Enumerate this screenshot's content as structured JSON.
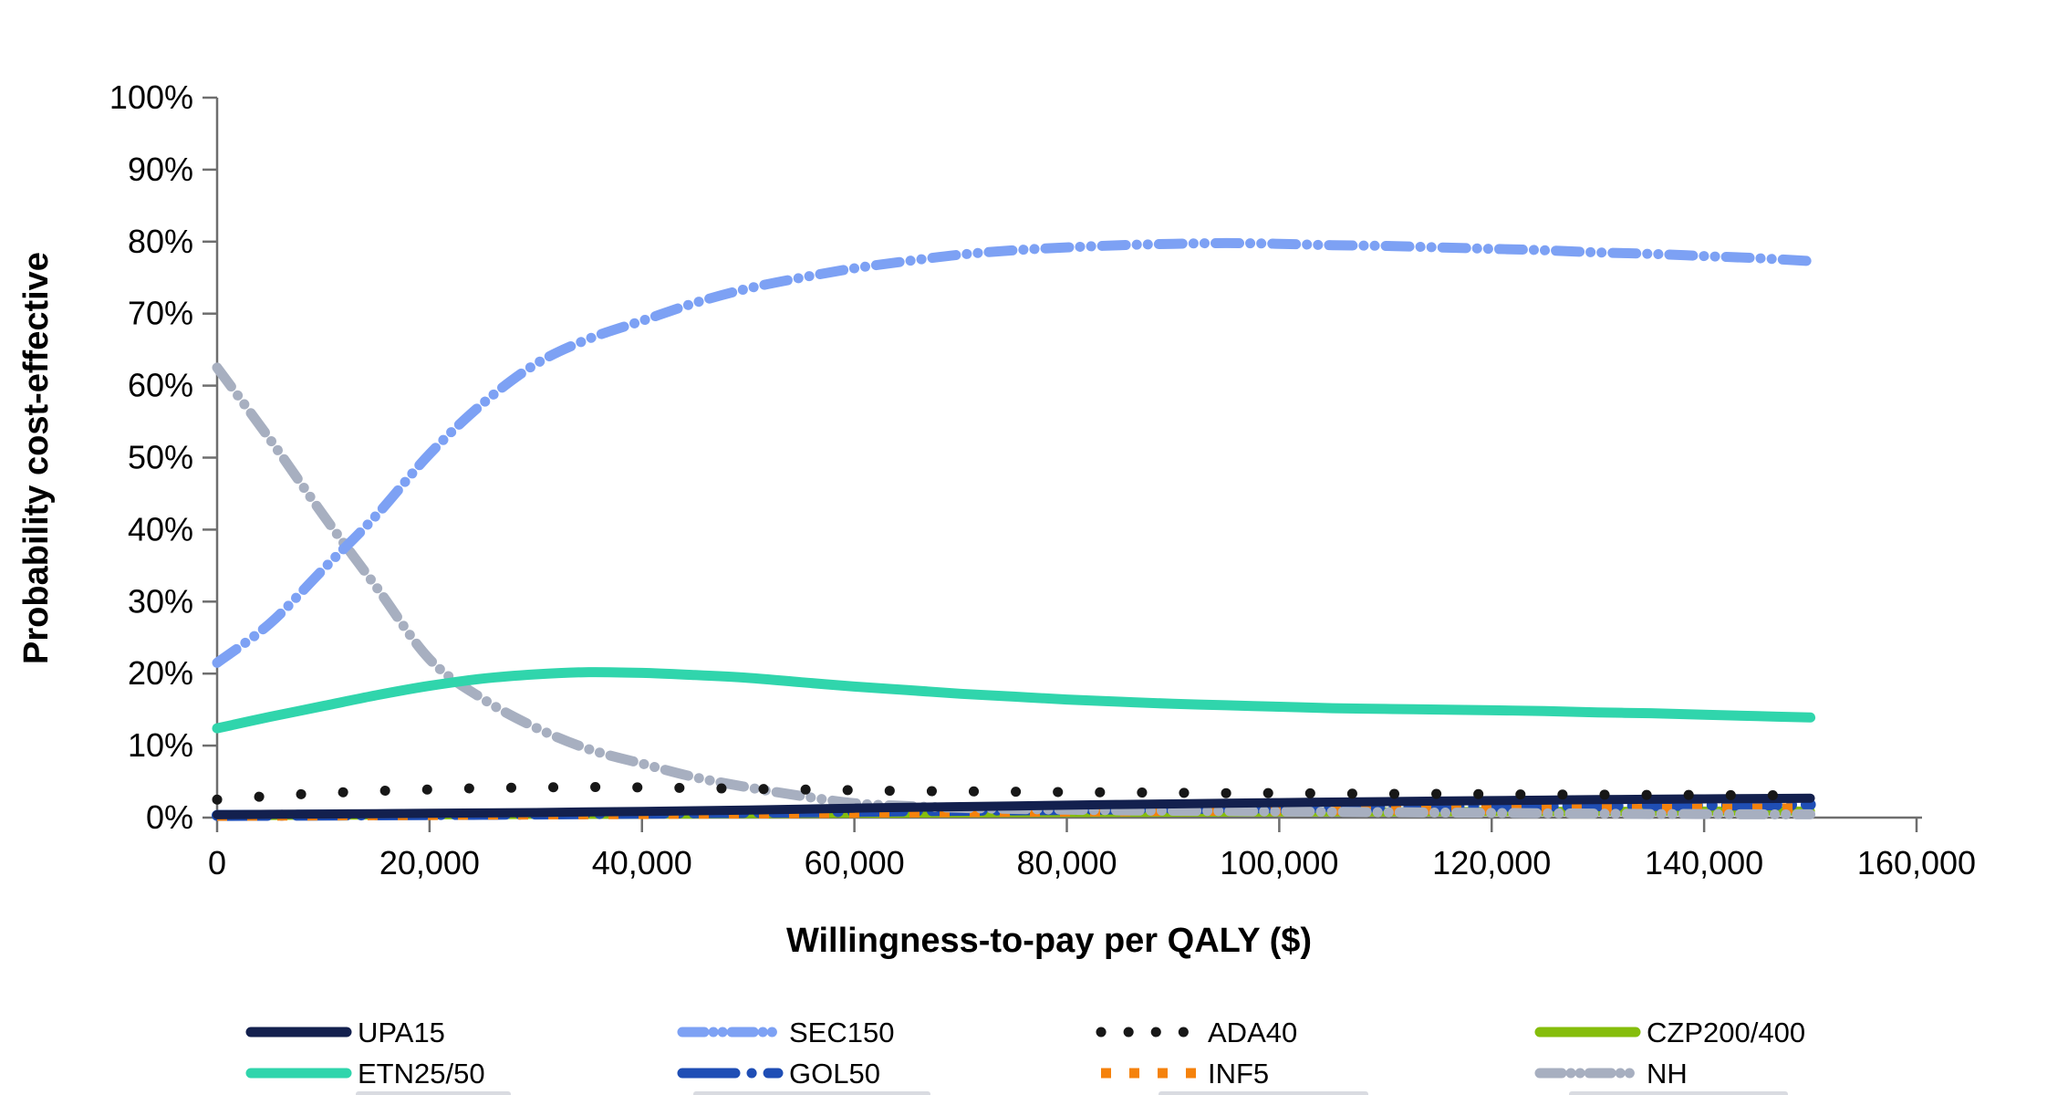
{
  "chart_data": {
    "type": "line",
    "title": "",
    "xlabel": "Willingness-to-pay per QALY ($)",
    "ylabel": "Probability cost-effective",
    "xlim": [
      0,
      160000
    ],
    "ylim": [
      0,
      100
    ],
    "grid": false,
    "legend_position": "bottom",
    "x_ticks": [
      0,
      20000,
      40000,
      60000,
      80000,
      100000,
      120000,
      140000,
      160000
    ],
    "x_tick_labels": [
      "0",
      "20,000",
      "40,000",
      "60,000",
      "80,000",
      "100,000",
      "120,000",
      "140,000",
      "160,000"
    ],
    "y_ticks": [
      0,
      10,
      20,
      30,
      40,
      50,
      60,
      70,
      80,
      90,
      100
    ],
    "y_tick_labels": [
      "0%",
      "10%",
      "20%",
      "30%",
      "40%",
      "50%",
      "60%",
      "70%",
      "80%",
      "90%",
      "100%"
    ],
    "x_data_start": 0,
    "x_data_step": 5000,
    "x_data_end": 150000,
    "axis_color": "#6e6e6e",
    "text_color": "#000000",
    "series": [
      {
        "name": "UPA15",
        "color": "#13204e",
        "style": "solid",
        "width": 10,
        "values": [
          0.4,
          0.45,
          0.5,
          0.55,
          0.6,
          0.65,
          0.7,
          0.78,
          0.85,
          0.95,
          1.05,
          1.18,
          1.3,
          1.42,
          1.52,
          1.62,
          1.72,
          1.82,
          1.9,
          2.0,
          2.08,
          2.15,
          2.22,
          2.3,
          2.36,
          2.42,
          2.5,
          2.55,
          2.6,
          2.65,
          2.7
        ]
      },
      {
        "name": "SEC150",
        "color": "#7da1f4",
        "style": "dashdotdot",
        "width": 11,
        "values": [
          21.5,
          27,
          34.5,
          42,
          50.5,
          57.5,
          63,
          66.5,
          69,
          71.5,
          73.5,
          75,
          76.3,
          77.3,
          78.2,
          78.8,
          79.2,
          79.5,
          79.7,
          79.8,
          79.7,
          79.5,
          79.4,
          79.2,
          79,
          78.8,
          78.5,
          78.3,
          78,
          77.7,
          77.3
        ]
      },
      {
        "name": "ADA40",
        "color": "#171717",
        "style": "dot",
        "width": 11,
        "values": [
          2.5,
          3.0,
          3.4,
          3.7,
          3.9,
          4.1,
          4.2,
          4.25,
          4.2,
          4.1,
          4.0,
          3.9,
          3.8,
          3.7,
          3.65,
          3.6,
          3.55,
          3.5,
          3.45,
          3.4,
          3.4,
          3.35,
          3.3,
          3.3,
          3.25,
          3.2,
          3.2,
          3.15,
          3.15,
          3.1,
          3.1
        ]
      },
      {
        "name": "CZP200/400",
        "color": "#85bd0b",
        "style": "solid",
        "width": 10,
        "values": [
          0.3,
          0.3,
          0.35,
          0.35,
          0.4,
          0.4,
          0.45,
          0.45,
          0.5,
          0.5,
          0.55,
          0.58,
          0.6,
          0.62,
          0.65,
          0.68,
          0.7,
          0.72,
          0.75,
          0.76,
          0.78,
          0.8,
          0.8,
          0.82,
          0.85,
          0.85,
          0.87,
          0.88,
          0.9,
          0.9,
          0.9
        ]
      },
      {
        "name": "ETN25/50",
        "color": "#30d5ac",
        "style": "solid",
        "width": 11,
        "values": [
          12.4,
          14,
          15.5,
          17,
          18.3,
          19.3,
          19.9,
          20.2,
          20.1,
          19.8,
          19.4,
          18.8,
          18.2,
          17.7,
          17.2,
          16.8,
          16.4,
          16.1,
          15.8,
          15.6,
          15.4,
          15.2,
          15.1,
          15,
          14.9,
          14.8,
          14.6,
          14.5,
          14.3,
          14.1,
          13.9
        ]
      },
      {
        "name": "GOL50",
        "color": "#1f4eb5",
        "style": "dashdot",
        "width": 12,
        "values": [
          0.3,
          0.32,
          0.35,
          0.38,
          0.42,
          0.46,
          0.5,
          0.55,
          0.6,
          0.66,
          0.72,
          0.78,
          0.85,
          0.92,
          1.0,
          1.06,
          1.12,
          1.2,
          1.26,
          1.32,
          1.38,
          1.42,
          1.48,
          1.52,
          1.56,
          1.6,
          1.65,
          1.68,
          1.72,
          1.76,
          1.8
        ]
      },
      {
        "name": "INF5",
        "color": "#f5820c",
        "style": "squaredash",
        "width": 11,
        "values": [
          0.25,
          0.27,
          0.3,
          0.33,
          0.36,
          0.4,
          0.43,
          0.46,
          0.5,
          0.53,
          0.56,
          0.6,
          0.65,
          0.7,
          0.75,
          0.8,
          0.84,
          0.88,
          0.92,
          0.96,
          1.0,
          1.03,
          1.06,
          1.1,
          1.12,
          1.15,
          1.18,
          1.2,
          1.23,
          1.26,
          1.3
        ]
      },
      {
        "name": "NH",
        "color": "#a7afc0",
        "style": "dashdotdot",
        "width": 11,
        "values": [
          62.5,
          52.5,
          42,
          32,
          22,
          16.5,
          12.5,
          9.5,
          7.5,
          5.6,
          4.2,
          3.0,
          2.0,
          1.6,
          1.35,
          1.2,
          1.1,
          1.0,
          0.95,
          0.9,
          0.85,
          0.8,
          0.75,
          0.7,
          0.65,
          0.6,
          0.55,
          0.5,
          0.5,
          0.45,
          0.45
        ]
      }
    ],
    "legend_rows": [
      [
        "UPA15",
        "SEC150",
        "ADA40",
        "CZP200/400"
      ],
      [
        "ETN25/50",
        "GOL50",
        "INF5",
        "NH"
      ]
    ],
    "legend_row3_cut_off": true
  }
}
